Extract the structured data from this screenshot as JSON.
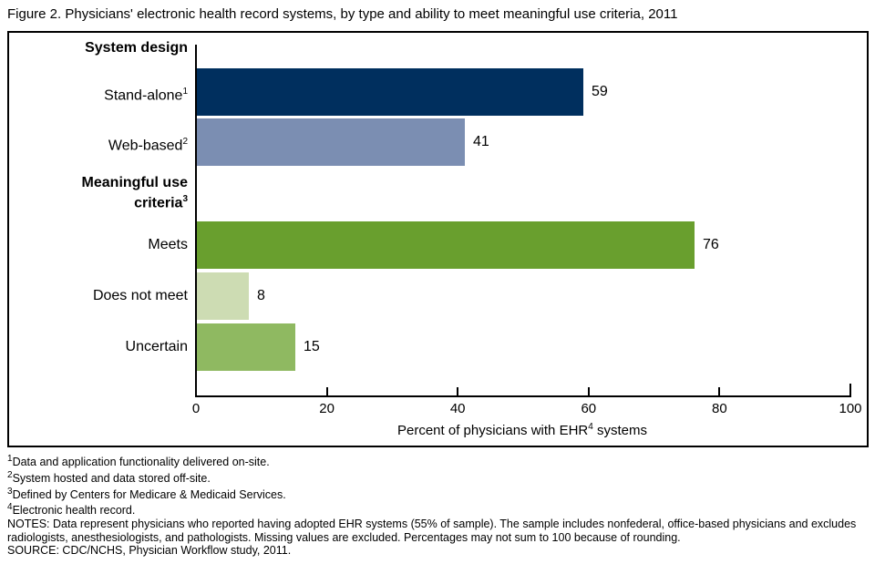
{
  "figure": {
    "title": "Figure 2. Physicians' electronic health record systems, by type and ability to meet meaningful use criteria, 2011"
  },
  "chart_data": {
    "type": "bar",
    "orientation": "horizontal",
    "title": "Figure 2. Physicians' electronic health record systems, by type and ability to meet meaningful use criteria, 2011",
    "categories": [
      "Stand-alone",
      "Web-based",
      "Meets",
      "Does not meet",
      "Uncertain"
    ],
    "values": [
      59,
      41,
      76,
      8,
      15
    ],
    "xlim": [
      0,
      100
    ],
    "xticks": [
      "0",
      "20",
      "40",
      "60",
      "80",
      "100"
    ],
    "grid": "off",
    "legend": "none",
    "xlabel": {
      "pre": "Percent of physicians with EHR",
      "sup": "4",
      "post": " systems"
    },
    "groups": [
      {
        "header": {
          "lines": [
            "System design"
          ],
          "sup": ""
        },
        "bars": [
          {
            "label": "Stand-alone",
            "sup": "1",
            "value": 59,
            "color": "#002f5e"
          },
          {
            "label": "Web-based",
            "sup": "2",
            "value": 41,
            "color": "#7b8eb2"
          }
        ]
      },
      {
        "header": {
          "lines": [
            "Meaningful use",
            "criteria"
          ],
          "sup": "3"
        },
        "bars": [
          {
            "label": "Meets",
            "sup": "",
            "value": 76,
            "color": "#699f2e"
          },
          {
            "label": "Does not meet",
            "sup": "",
            "value": 8,
            "color": "#cddcb3"
          },
          {
            "label": "Uncertain",
            "sup": "",
            "value": 15,
            "color": "#8fb961"
          }
        ]
      }
    ]
  },
  "footnotes": [
    {
      "sup": "1",
      "text": "Data and application functionality delivered on-site."
    },
    {
      "sup": "2",
      "text": "System hosted and data stored off-site."
    },
    {
      "sup": "3",
      "text": "Defined by Centers for Medicare & Medicaid Services."
    },
    {
      "sup": "4",
      "text": "Electronic health record."
    },
    {
      "sup": "",
      "text": "NOTES: Data represent physicians who reported having adopted EHR systems (55% of sample). The sample includes nonfederal, office-based physicians and excludes radiologists, anesthesiologists, and pathologists. Missing values are excluded. Percentages may not sum to 100 because of rounding."
    },
    {
      "sup": "",
      "text": "SOURCE: CDC/NCHS, Physician Workflow study, 2011."
    }
  ]
}
